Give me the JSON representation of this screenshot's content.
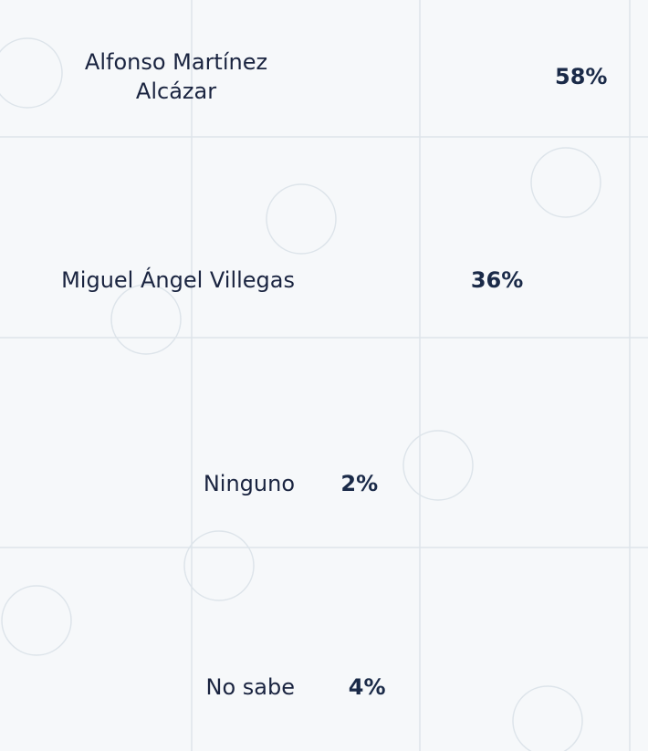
{
  "chart_data": {
    "type": "bar",
    "orientation": "horizontal",
    "categories": [
      "Alfonso Martínez Alcázar",
      "Miguel Ángel Villegas",
      "Ninguno",
      "No sabe"
    ],
    "values": [
      58,
      36,
      2,
      4
    ],
    "value_labels": [
      "58%",
      "36%",
      "2%",
      "4%"
    ],
    "colors": [
      "#0a7fd9",
      "#0a7fd9",
      "#e6e6e6",
      "#8a8a8a"
    ]
  }
}
